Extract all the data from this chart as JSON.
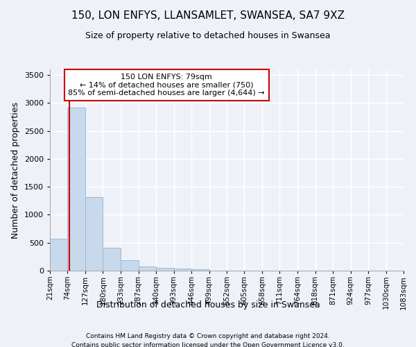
{
  "title1": "150, LON ENFYS, LLANSAMLET, SWANSEA, SA7 9XZ",
  "title2": "Size of property relative to detached houses in Swansea",
  "xlabel": "Distribution of detached houses by size in Swansea",
  "ylabel": "Number of detached properties",
  "footer1": "Contains HM Land Registry data © Crown copyright and database right 2024.",
  "footer2": "Contains public sector information licensed under the Open Government Licence v3.0.",
  "annotation_line1": "150 LON ENFYS: 79sqm",
  "annotation_line2": "← 14% of detached houses are smaller (750)",
  "annotation_line3": "85% of semi-detached houses are larger (4,644) →",
  "subject_value": 79,
  "bar_color": "#c9d9ec",
  "bar_edge_color": "#9ab8d4",
  "subject_line_color": "#cc0000",
  "annotation_box_edge_color": "#cc0000",
  "background_color": "#eef2f8",
  "grid_color": "#ffffff",
  "bins": [
    21,
    74,
    127,
    180,
    233,
    287,
    340,
    393,
    446,
    499,
    552,
    605,
    658,
    711,
    764,
    818,
    871,
    924,
    977,
    1030,
    1083
  ],
  "bin_labels": [
    "21sqm",
    "74sqm",
    "127sqm",
    "180sqm",
    "233sqm",
    "287sqm",
    "340sqm",
    "393sqm",
    "446sqm",
    "499sqm",
    "552sqm",
    "605sqm",
    "658sqm",
    "711sqm",
    "764sqm",
    "818sqm",
    "871sqm",
    "924sqm",
    "977sqm",
    "1030sqm",
    "1083sqm"
  ],
  "values": [
    570,
    2920,
    1320,
    410,
    185,
    80,
    50,
    40,
    30,
    0,
    0,
    0,
    0,
    0,
    0,
    0,
    0,
    0,
    0,
    0
  ],
  "ylim": [
    0,
    3600
  ],
  "yticks": [
    0,
    500,
    1000,
    1500,
    2000,
    2500,
    3000,
    3500
  ],
  "title1_fontsize": 11,
  "title2_fontsize": 9,
  "ylabel_fontsize": 9,
  "xlabel_fontsize": 9,
  "tick_fontsize": 8,
  "xtick_fontsize": 7.5,
  "footer_fontsize": 6.5,
  "annot_fontsize": 8
}
